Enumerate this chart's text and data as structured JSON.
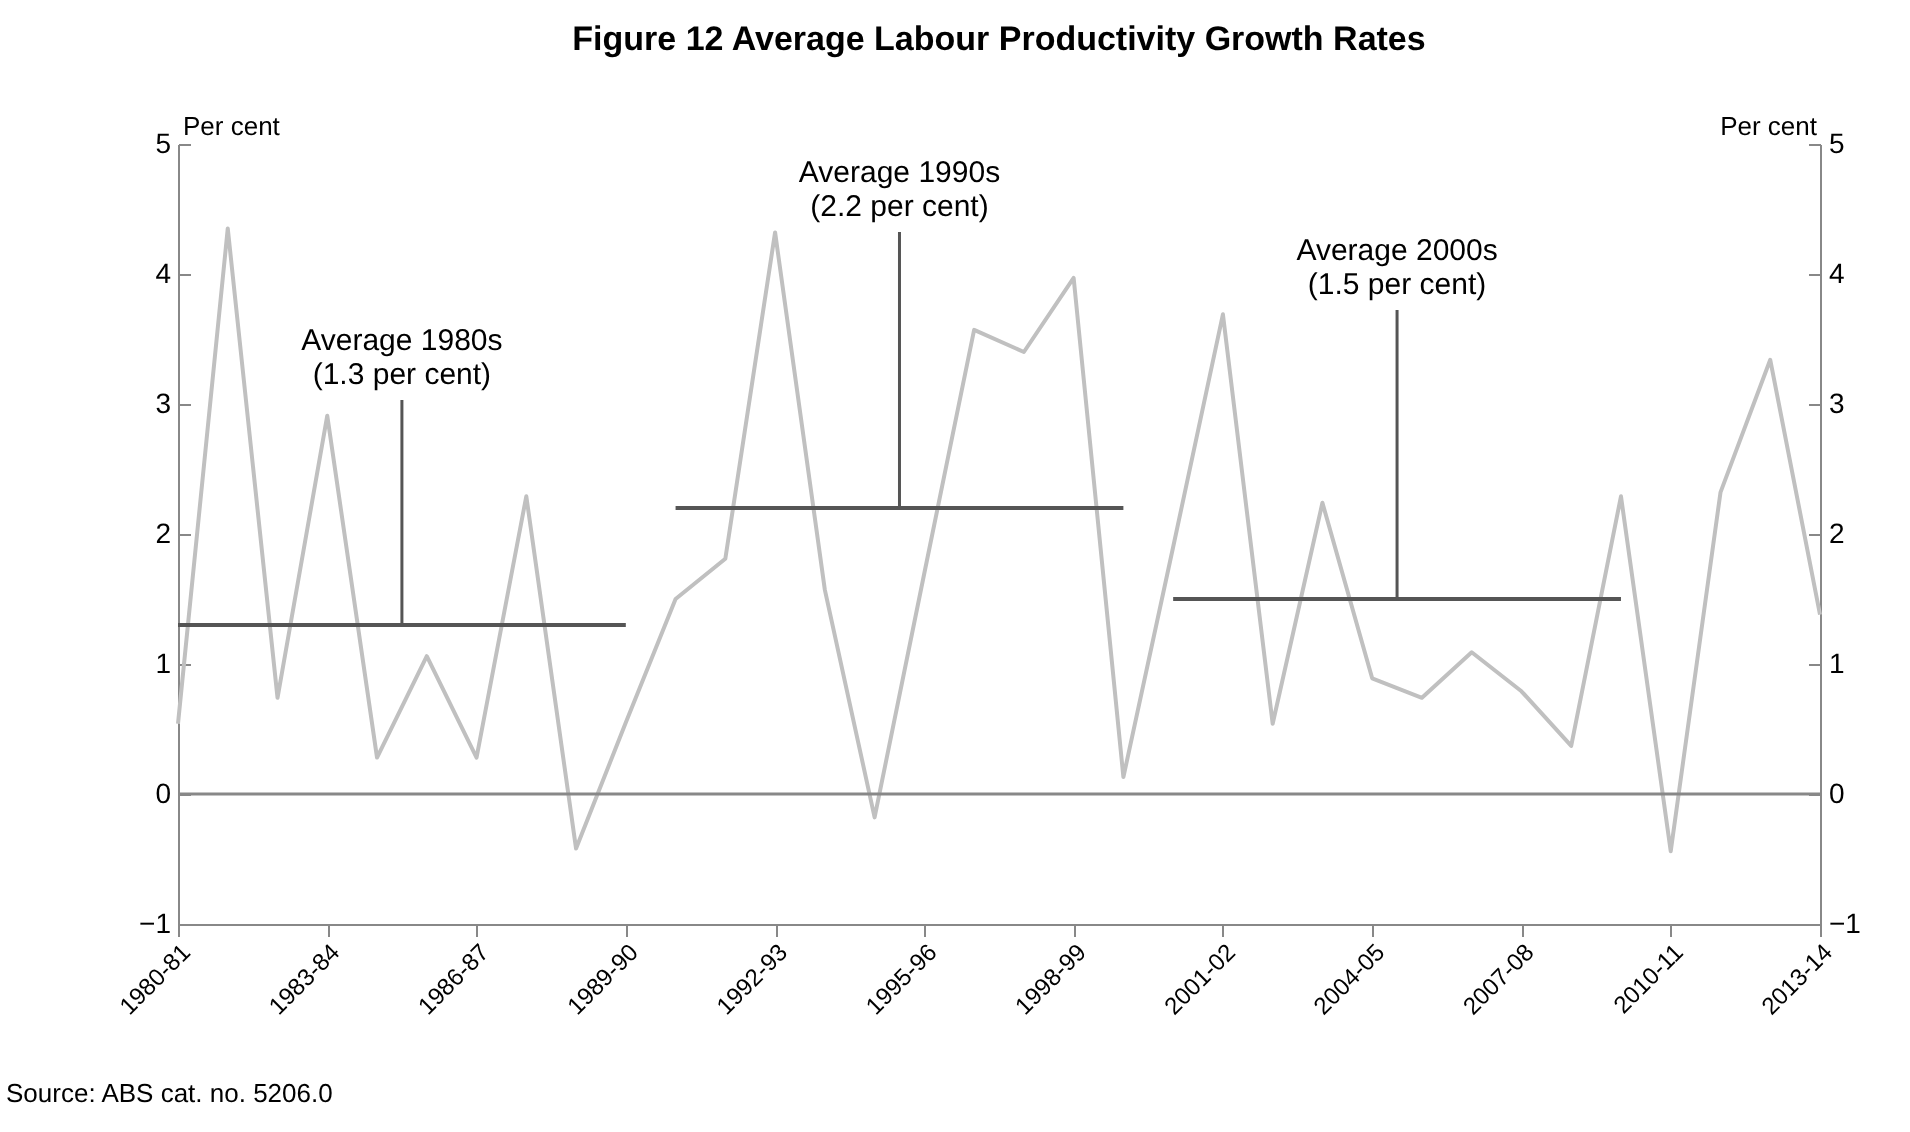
{
  "chart_data": {
    "type": "line",
    "title": "Figure 12      Average Labour Productivity Growth Rates",
    "ylabel": "Per cent",
    "y2label": "Per cent",
    "categories": [
      "1980-81",
      null,
      null,
      "1983-84",
      null,
      null,
      "1986-87",
      null,
      null,
      "1989-90",
      null,
      null,
      "1992-93",
      null,
      null,
      "1995-96",
      null,
      null,
      "1998-99",
      null,
      null,
      "2001-02",
      null,
      null,
      "2004-05",
      null,
      null,
      "2007-08",
      null,
      null,
      "2010-11",
      null,
      null,
      "2013-14"
    ],
    "series": [
      {
        "color": "#c0c0c0",
        "values": [
          0.54,
          4.35,
          0.74,
          2.91,
          0.28,
          1.06,
          0.28,
          2.29,
          -0.42,
          0.55,
          1.5,
          1.81,
          4.32,
          1.57,
          -0.18,
          1.7,
          3.57,
          3.4,
          3.97,
          0.13,
          1.9,
          3.69,
          0.54,
          2.24,
          0.89,
          0.74,
          1.09,
          0.79,
          0.37,
          2.29,
          -0.44,
          2.32,
          3.34,
          1.38
        ]
      },
      {
        "color": "#555555",
        "values": [
          1.3,
          1.3,
          1.3,
          1.3,
          1.3,
          1.3,
          1.3,
          1.3,
          1.3,
          1.3,
          null,
          null,
          null,
          null,
          null,
          null,
          null,
          null,
          null,
          null,
          null,
          null,
          null,
          null,
          null,
          null,
          null,
          null,
          null,
          null,
          null,
          null,
          null,
          null
        ]
      },
      {
        "color": "#555555",
        "values": [
          null,
          null,
          null,
          null,
          null,
          null,
          null,
          null,
          null,
          null,
          2.2,
          2.2,
          2.2,
          2.2,
          2.2,
          2.2,
          2.2,
          2.2,
          2.2,
          2.2,
          null,
          null,
          null,
          null,
          null,
          null,
          null,
          null,
          null,
          null,
          null,
          null,
          null,
          null
        ]
      },
      {
        "color": "#555555",
        "values": [
          null,
          null,
          null,
          null,
          null,
          null,
          null,
          null,
          null,
          null,
          null,
          null,
          null,
          null,
          null,
          null,
          null,
          null,
          null,
          null,
          1.5,
          1.5,
          1.5,
          1.5,
          1.5,
          1.5,
          1.5,
          1.5,
          1.5,
          1.5,
          null,
          null,
          null,
          null
        ]
      }
    ],
    "annotations": [
      {
        "text": "Average 1980s\n(1.3 per cent)",
        "y": 1.3
      },
      {
        "text": "Average 1990s\n(2.2 per cent)",
        "y": 2.2
      },
      {
        "text": "Average 2000s\n(1.5 per cent)",
        "y": 1.5
      },
      "Source: ABS cat. no. 5206.0"
    ],
    "ylim": [
      -1,
      5
    ],
    "yticks": [
      -1,
      0,
      1,
      2,
      3,
      4,
      5
    ],
    "y2lim": [
      -1,
      5
    ],
    "y2ticks": [
      -1,
      0,
      1,
      2,
      3,
      4,
      5
    ],
    "ref_lines": [
      {
        "axis": "y",
        "value": 0,
        "color": "#888888"
      }
    ]
  }
}
